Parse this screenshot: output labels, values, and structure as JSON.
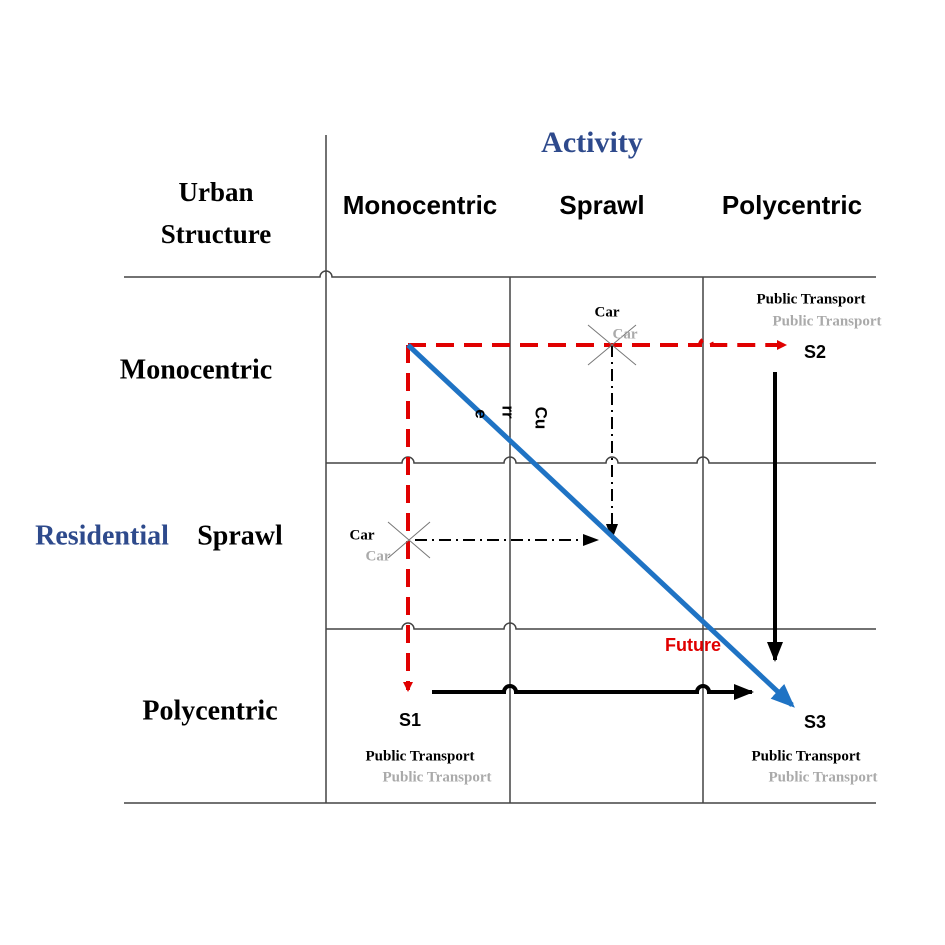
{
  "header": {
    "title": "Activity",
    "corner_label": [
      "Urban",
      "Structure"
    ]
  },
  "columns": [
    "Monocentric",
    "Sprawl",
    "Polycentric"
  ],
  "row_axis_label": "Residential",
  "rows": [
    "Monocentric",
    "Sprawl",
    "Polycentric"
  ],
  "annotations": {
    "car_1": "Car",
    "car_1_shadow": "Car",
    "car_2": "Car",
    "car_2_shadow": "Car",
    "s1": "S1",
    "s2": "S2",
    "s3": "S3",
    "pt_s1": "Public Transport",
    "pt_s1_shadow": "Public Transport",
    "pt_s2": "Public Transport",
    "pt_s2_shadow": "Public Transport",
    "pt_s3": "Public Transport",
    "pt_s3_shadow": "Public Transport",
    "future": "Future",
    "current_fragments": [
      "Cu",
      "rr",
      "e"
    ]
  }
}
